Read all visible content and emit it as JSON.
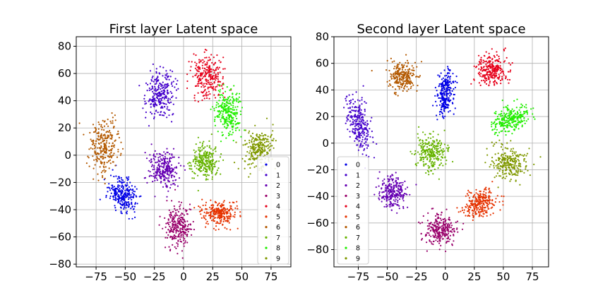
{
  "chart_data": [
    {
      "type": "scatter",
      "title": "First layer Latent space",
      "xlabel": "",
      "ylabel": "",
      "xlim": [
        -92,
        92
      ],
      "ylim": [
        -82,
        87
      ],
      "xticks": [
        -75,
        -50,
        -25,
        0,
        25,
        50,
        75
      ],
      "yticks": [
        -80,
        -60,
        -40,
        -20,
        0,
        20,
        40,
        60,
        80
      ],
      "xtick_labels": [
        "−75",
        "−50",
        "−25",
        "0",
        "25",
        "50",
        "75"
      ],
      "ytick_labels": [
        "−80",
        "−60",
        "−40",
        "−20",
        "0",
        "20",
        "40",
        "60",
        "80"
      ],
      "grid": true,
      "legend_position": "lower-right",
      "series": [
        {
          "name": "0",
          "color": "#0000e6",
          "cluster": {
            "center": [
              -52,
              -30
            ],
            "spread": [
              8,
              10
            ]
          }
        },
        {
          "name": "1",
          "color": "#4400cc",
          "cluster": {
            "center": [
              -20,
              45
            ],
            "spread": [
              8,
              13
            ]
          }
        },
        {
          "name": "2",
          "color": "#6600b3",
          "cluster": {
            "center": [
              -17,
              -10
            ],
            "spread": [
              9,
              9
            ]
          }
        },
        {
          "name": "3",
          "color": "#99006b",
          "cluster": {
            "center": [
              -5,
              -52
            ],
            "spread": [
              8,
              11
            ]
          }
        },
        {
          "name": "4",
          "color": "#e6001a",
          "cluster": {
            "center": [
              20,
              58
            ],
            "spread": [
              9,
              11
            ]
          }
        },
        {
          "name": "5",
          "color": "#e63300",
          "cluster": {
            "center": [
              30,
              -43
            ],
            "spread": [
              10,
              6
            ]
          }
        },
        {
          "name": "6",
          "color": "#b35900",
          "cluster": {
            "center": [
              -68,
              7
            ],
            "spread": [
              8,
              13
            ]
          }
        },
        {
          "name": "7",
          "color": "#66b300",
          "cluster": {
            "center": [
              18,
              -5
            ],
            "spread": [
              8,
              9
            ]
          }
        },
        {
          "name": "8",
          "color": "#22ee00",
          "cluster": {
            "center": [
              38,
              32
            ],
            "spread": [
              8,
              12
            ]
          }
        },
        {
          "name": "9",
          "color": "#809900",
          "cluster": {
            "center": [
              65,
              5
            ],
            "spread": [
              8,
              11
            ]
          }
        }
      ]
    },
    {
      "type": "scatter",
      "title": "Second layer Latent space",
      "xlabel": "",
      "ylabel": "",
      "xlim": [
        -96,
        89
      ],
      "ylim": [
        -93,
        80
      ],
      "xticks": [
        -75,
        -50,
        -25,
        0,
        25,
        50,
        75
      ],
      "yticks": [
        -80,
        -60,
        -40,
        -20,
        0,
        20,
        40,
        60,
        80
      ],
      "xtick_labels": [
        "−75",
        "−50",
        "−25",
        "0",
        "25",
        "50",
        "75"
      ],
      "ytick_labels": [
        "−80",
        "−60",
        "−40",
        "−20",
        "0",
        "20",
        "40",
        "60",
        "80"
      ],
      "grid": true,
      "legend_position": "lower-left",
      "series": [
        {
          "name": "0",
          "color": "#0000e6",
          "cluster": {
            "center": [
              0,
              38
            ],
            "spread": [
              5,
              12
            ]
          }
        },
        {
          "name": "1",
          "color": "#4400cc",
          "cluster": {
            "center": [
              -75,
              15
            ],
            "spread": [
              6,
              14
            ]
          }
        },
        {
          "name": "2",
          "color": "#6600b3",
          "cluster": {
            "center": [
              -45,
              -37
            ],
            "spread": [
              8,
              8
            ]
          }
        },
        {
          "name": "3",
          "color": "#99006b",
          "cluster": {
            "center": [
              -5,
              -65
            ],
            "spread": [
              10,
              8
            ]
          }
        },
        {
          "name": "4",
          "color": "#e6001a",
          "cluster": {
            "center": [
              40,
              55
            ],
            "spread": [
              9,
              8
            ]
          }
        },
        {
          "name": "5",
          "color": "#e63300",
          "cluster": {
            "center": [
              30,
              -45
            ],
            "spread": [
              10,
              7
            ]
          }
        },
        {
          "name": "6",
          "color": "#b35900",
          "cluster": {
            "center": [
              -37,
              50
            ],
            "spread": [
              8,
              8
            ]
          }
        },
        {
          "name": "7",
          "color": "#66b300",
          "cluster": {
            "center": [
              -12,
              -7
            ],
            "spread": [
              9,
              9
            ]
          }
        },
        {
          "name": "8",
          "color": "#22ee00",
          "cluster": {
            "center": [
              55,
              18
            ],
            "spread": [
              12,
              6
            ]
          }
        },
        {
          "name": "9",
          "color": "#809900",
          "cluster": {
            "center": [
              55,
              -15
            ],
            "spread": [
              10,
              8
            ]
          }
        }
      ]
    }
  ]
}
